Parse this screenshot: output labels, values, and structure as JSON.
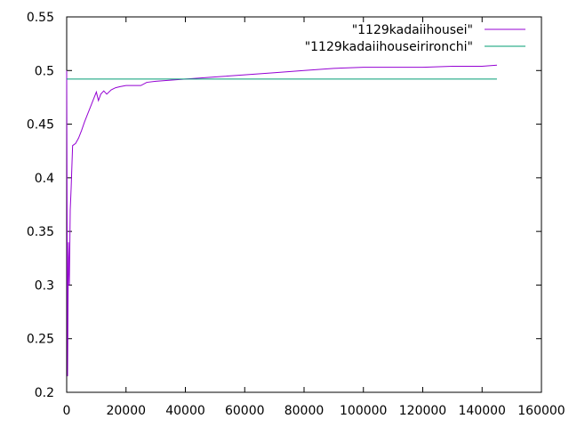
{
  "chart_data": {
    "type": "line",
    "title": "",
    "xlabel": "",
    "ylabel": "",
    "xlim": [
      0,
      160000
    ],
    "ylim": [
      0.2,
      0.55
    ],
    "xticks": [
      0,
      20000,
      40000,
      60000,
      80000,
      100000,
      120000,
      140000,
      160000
    ],
    "yticks": [
      0.2,
      0.25,
      0.3,
      0.35,
      0.4,
      0.45,
      0.5,
      0.55
    ],
    "xtick_labels": [
      "0",
      "20000",
      "40000",
      "60000",
      "80000",
      "100000",
      "120000",
      "140000",
      "160000"
    ],
    "ytick_labels": [
      "0.2",
      "0.25",
      "0.3",
      "0.35",
      "0.4",
      "0.45",
      "0.5",
      "0.55"
    ],
    "grid": false,
    "legend_position": "top-right",
    "series": [
      {
        "name": "\"1129kadaiihousei\"",
        "color": "#9400d3",
        "points": [
          [
            0,
            0.5
          ],
          [
            300,
            0.215
          ],
          [
            600,
            0.34
          ],
          [
            900,
            0.3
          ],
          [
            1200,
            0.37
          ],
          [
            1500,
            0.39
          ],
          [
            2000,
            0.43
          ],
          [
            3000,
            0.432
          ],
          [
            4000,
            0.437
          ],
          [
            5000,
            0.444
          ],
          [
            6000,
            0.452
          ],
          [
            7000,
            0.459
          ],
          [
            8000,
            0.466
          ],
          [
            9000,
            0.473
          ],
          [
            10000,
            0.48
          ],
          [
            10700,
            0.472
          ],
          [
            11500,
            0.478
          ],
          [
            12500,
            0.481
          ],
          [
            13500,
            0.478
          ],
          [
            15000,
            0.482
          ],
          [
            16500,
            0.484
          ],
          [
            18000,
            0.485
          ],
          [
            20000,
            0.486
          ],
          [
            22000,
            0.486
          ],
          [
            25000,
            0.486
          ],
          [
            27000,
            0.489
          ],
          [
            30000,
            0.49
          ],
          [
            35000,
            0.491
          ],
          [
            40000,
            0.492
          ],
          [
            50000,
            0.494
          ],
          [
            60000,
            0.496
          ],
          [
            70000,
            0.498
          ],
          [
            80000,
            0.5
          ],
          [
            90000,
            0.502
          ],
          [
            100000,
            0.503
          ],
          [
            110000,
            0.503
          ],
          [
            120000,
            0.503
          ],
          [
            130000,
            0.504
          ],
          [
            140000,
            0.504
          ],
          [
            145000,
            0.505
          ]
        ]
      },
      {
        "name": "\"1129kadaiihouseirironchi\"",
        "color": "#009e73",
        "points": [
          [
            0,
            0.492
          ],
          [
            145000,
            0.492
          ]
        ]
      }
    ]
  }
}
